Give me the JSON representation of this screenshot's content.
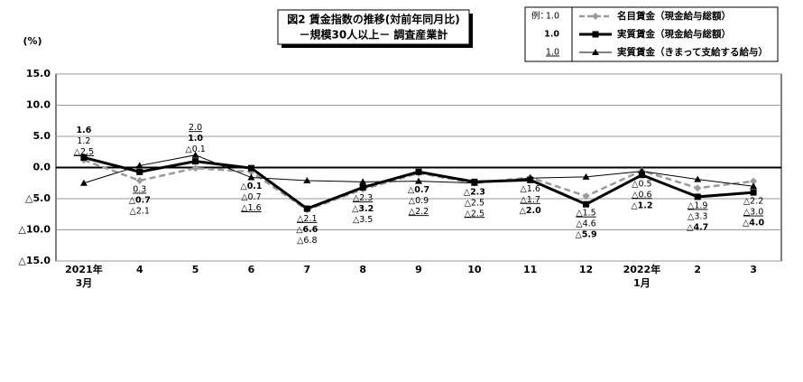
{
  "chart_data": {
    "type": "line",
    "title": "図2  賃金指数の推移(対前年同月比)",
    "subtitle": "－規模30人以上－  調査産業計",
    "y_unit": "(%)",
    "legend_example": {
      "prefix": "例：",
      "samples": [
        "1.0",
        "1.0",
        "1.0"
      ]
    },
    "categories": [
      [
        "2021年",
        "3月"
      ],
      "4",
      "5",
      "6",
      "7",
      "8",
      "9",
      "10",
      "11",
      "12",
      [
        "2022年",
        "1月"
      ],
      "2",
      "3"
    ],
    "ylim": [
      -15,
      15
    ],
    "yticks": [
      {
        "value": 15,
        "label": "15.0"
      },
      {
        "value": 10,
        "label": "10.0"
      },
      {
        "value": 5,
        "label": "5.0"
      },
      {
        "value": 0,
        "label": "0.0"
      },
      {
        "value": -5,
        "label": "△5.0"
      },
      {
        "value": -10,
        "label": "△10.0"
      },
      {
        "value": -15,
        "label": "△15.0"
      }
    ],
    "grid": true,
    "series": [
      {
        "name": "名目賃金（現金給与総額）",
        "color": "#9a9a9a",
        "dash": true,
        "marker": "diamond",
        "line_width": 2.5,
        "font_weight": "normal",
        "text_decoration": "none",
        "values": [
          1.2,
          -2.1,
          -0.1,
          -0.7,
          -6.8,
          -3.5,
          -0.9,
          -2.5,
          -1.6,
          -4.6,
          -0.5,
          -3.3,
          -2.2
        ],
        "value_labels": [
          "1.2",
          "△2.1",
          "△0.1",
          "△0.7",
          "△6.8",
          "△3.5",
          "△0.9",
          "△2.5",
          "△1.6",
          "△4.6",
          "△0.5",
          "△3.3",
          "△2.2"
        ]
      },
      {
        "name": "実質賃金（現金給与総額）",
        "color": "#000000",
        "dash": false,
        "marker": "square",
        "line_width": 3,
        "font_weight": "bold",
        "text_decoration": "none",
        "values": [
          1.6,
          -0.7,
          1.0,
          -0.1,
          -6.6,
          -3.2,
          -0.7,
          -2.3,
          -2.0,
          -5.9,
          -1.2,
          -4.7,
          -4.0
        ],
        "value_labels": [
          "1.6",
          "△0.7",
          "1.0",
          "△0.1",
          "△6.6",
          "△3.2",
          "△0.7",
          "△2.3",
          "△2.0",
          "△5.9",
          "△1.2",
          "△4.7",
          "△4.0"
        ]
      },
      {
        "name": "実質賃金（きまって支給する給与）",
        "color": "#000000",
        "dash": false,
        "marker": "triangle",
        "line_width": 1,
        "font_weight": "normal",
        "text_decoration": "underline",
        "values": [
          -2.5,
          0.3,
          2.0,
          -1.6,
          -2.1,
          -2.3,
          -2.2,
          -2.5,
          -1.7,
          -1.5,
          -0.6,
          -1.9,
          -3.0
        ],
        "value_labels": [
          "△2.5",
          "0.3",
          "2.0",
          "△1.6",
          "△2.1",
          "△2.3",
          "△2.2",
          "△2.5",
          "△1.7",
          "△1.5",
          "△0.6",
          "△1.9",
          "△3.0"
        ]
      }
    ]
  }
}
